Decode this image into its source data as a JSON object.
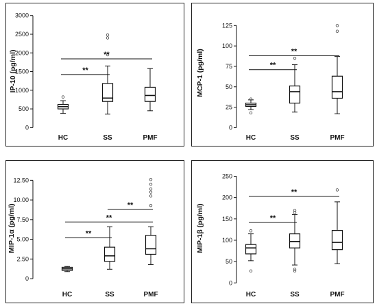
{
  "chart_data": [
    {
      "type": "box",
      "ylabel": "IP-10 (pg/ml)",
      "categories": [
        "HC",
        "SS",
        "PMF"
      ],
      "ylim": [
        -30,
        3050
      ],
      "yticks": [
        0,
        500,
        1000,
        1500,
        2000,
        2500,
        3000
      ],
      "ytick_labels": [
        "0",
        "500",
        "1000",
        "1500",
        "2000",
        "2500",
        "3000"
      ],
      "boxes": [
        {
          "category": "HC",
          "min": 380,
          "q1": 500,
          "median": 560,
          "q3": 620,
          "max": 720,
          "outliers": [
            820
          ]
        },
        {
          "category": "SS",
          "min": 360,
          "q1": 700,
          "median": 790,
          "q3": 1180,
          "max": 1650,
          "outliers": [
            1950,
            2400,
            2480
          ]
        },
        {
          "category": "PMF",
          "min": 450,
          "q1": 700,
          "median": 860,
          "q3": 1080,
          "max": 1580,
          "outliers": []
        }
      ],
      "significance": [
        {
          "from": "HC",
          "to": "SS",
          "y": 1420,
          "label": "**"
        },
        {
          "from": "HC",
          "to": "PMF",
          "y": 1840,
          "label": "**"
        }
      ]
    },
    {
      "type": "box",
      "ylabel": "MCP-1 (pg/ml)",
      "categories": [
        "HC",
        "SS",
        "PMF"
      ],
      "ylim": [
        -3,
        137
      ],
      "yticks": [
        0,
        25,
        50,
        75,
        100,
        125
      ],
      "ytick_labels": [
        "0",
        "25",
        "50",
        "75",
        "100",
        "125"
      ],
      "boxes": [
        {
          "category": "HC",
          "min": 22,
          "q1": 26,
          "median": 28,
          "q3": 30,
          "max": 34,
          "outliers": [
            18,
            35
          ]
        },
        {
          "category": "SS",
          "min": 19,
          "q1": 30,
          "median": 44,
          "q3": 51,
          "max": 77,
          "outliers": [
            85
          ]
        },
        {
          "category": "PMF",
          "min": 17,
          "q1": 36,
          "median": 44,
          "q3": 63,
          "max": 87,
          "outliers": [
            118,
            125
          ]
        }
      ],
      "significance": [
        {
          "from": "HC",
          "to": "SS",
          "y": 71,
          "label": "**"
        },
        {
          "from": "HC",
          "to": "PMF",
          "y": 88,
          "label": "**"
        }
      ]
    },
    {
      "type": "box",
      "ylabel": "MIP-1α (pg/ml)",
      "categories": [
        "HC",
        "SS",
        "PMF"
      ],
      "ylim": [
        -0.6,
        13.4
      ],
      "yticks": [
        0,
        2.5,
        5,
        7.5,
        10,
        12.5
      ],
      "ytick_labels": [
        "0",
        "2.50",
        "5.00",
        "7.50",
        "10.00",
        "12.50"
      ],
      "boxes": [
        {
          "category": "HC",
          "min": 0.9,
          "q1": 1.05,
          "median": 1.25,
          "q3": 1.45,
          "max": 1.55,
          "outliers": []
        },
        {
          "category": "SS",
          "min": 1.2,
          "q1": 2.2,
          "median": 2.9,
          "q3": 4.0,
          "max": 6.6,
          "outliers": []
        },
        {
          "category": "PMF",
          "min": 1.8,
          "q1": 3.1,
          "median": 3.8,
          "q3": 5.5,
          "max": 6.6,
          "outliers": [
            9.3,
            10.5,
            11.0,
            11.4,
            12.0,
            12.6
          ]
        }
      ],
      "significance": [
        {
          "from": "HC",
          "to": "SS",
          "y": 5.2,
          "label": "**"
        },
        {
          "from": "HC",
          "to": "PMF",
          "y": 7.2,
          "label": "**"
        },
        {
          "from": "SS",
          "to": "PMF",
          "y": 8.8,
          "label": "**"
        }
      ]
    },
    {
      "type": "box",
      "ylabel": "MIP-1β (pg/ml)",
      "categories": [
        "HC",
        "SS",
        "PMF"
      ],
      "ylim": [
        -6,
        262
      ],
      "yticks": [
        0,
        50,
        100,
        150,
        200,
        250
      ],
      "ytick_labels": [
        "0",
        "50",
        "100",
        "150",
        "200",
        "250"
      ],
      "boxes": [
        {
          "category": "HC",
          "min": 52,
          "q1": 68,
          "median": 82,
          "q3": 90,
          "max": 115,
          "outliers": [
            28,
            122
          ]
        },
        {
          "category": "SS",
          "min": 42,
          "q1": 82,
          "median": 97,
          "q3": 115,
          "max": 160,
          "outliers": [
            28,
            32,
            165,
            170
          ]
        },
        {
          "category": "PMF",
          "min": 45,
          "q1": 78,
          "median": 95,
          "q3": 123,
          "max": 190,
          "outliers": [
            218
          ]
        }
      ],
      "significance": [
        {
          "from": "HC",
          "to": "SS",
          "y": 142,
          "label": "**"
        },
        {
          "from": "HC",
          "to": "PMF",
          "y": 203,
          "label": "**"
        }
      ]
    }
  ]
}
